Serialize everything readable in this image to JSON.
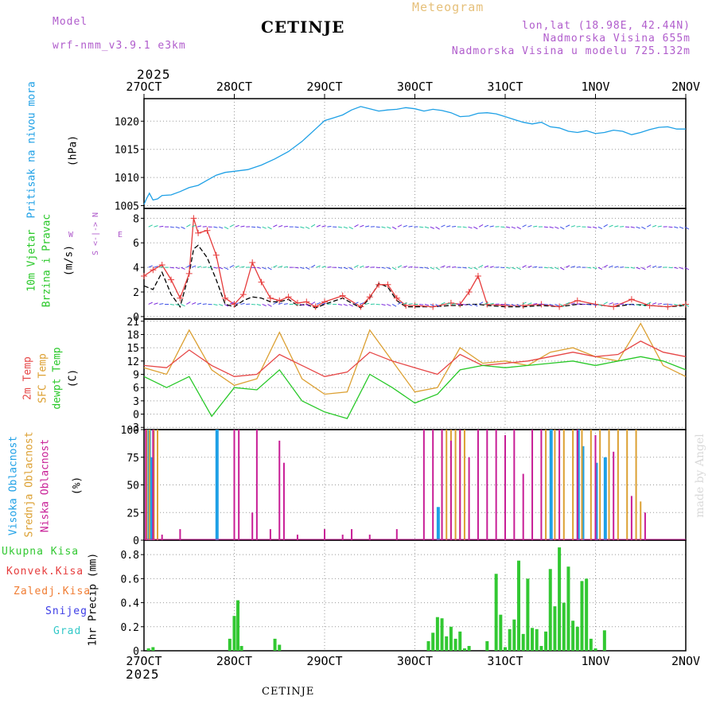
{
  "header": {
    "model_label": "Model",
    "model_name": "wrf-nmm_v3.9.1 e3km",
    "station": "CETINJE",
    "meteogram_label": "Meteogram",
    "lonlat": "lon,lat (18.98E, 42.44N)",
    "altitude": "Nadmorska Visina 655m",
    "model_altitude": "Nadmorska Visina u modelu 725.132m",
    "year_top": "2025",
    "year_bottom": "2025",
    "footer_station": "CETINJE",
    "watermark": "made by Angel"
  },
  "colors": {
    "pressure": "#1ea0e6",
    "temp2m": "#e64646",
    "sfc": "#dca032",
    "dewpt": "#28c828",
    "high_cloud": "#1ea0e6",
    "mid_cloud": "#dca032",
    "low_cloud": "#c81e96",
    "precip": "#32c832",
    "wind_mag": "#e63c3c",
    "gust": "#000000"
  },
  "chart_data": [
    {
      "type": "line",
      "id": "pressure",
      "ylabel_lines": [
        "Pritisak na nivou mora"
      ],
      "unit": "(hPa)",
      "x_ticks": [
        "27OCT",
        "28OCT",
        "29OCT",
        "30OCT",
        "31OCT",
        "1NOV",
        "2NOV"
      ],
      "ylim": [
        1004.5,
        1024
      ],
      "yticks": [
        1005,
        1010,
        1015,
        1020
      ],
      "series": [
        {
          "name": "Pritisak",
          "x": [
            0,
            0.03,
            0.06,
            0.1,
            0.15,
            0.2,
            0.3,
            0.4,
            0.5,
            0.6,
            0.7,
            0.8,
            0.9,
            1.0,
            1.15,
            1.3,
            1.45,
            1.6,
            1.75,
            1.9,
            2.0,
            2.1,
            2.2,
            2.3,
            2.4,
            2.5,
            2.6,
            2.7,
            2.8,
            2.9,
            3.0,
            3.1,
            3.2,
            3.3,
            3.4,
            3.5,
            3.6,
            3.7,
            3.8,
            3.9,
            4.0,
            4.1,
            4.2,
            4.3,
            4.4,
            4.5,
            4.6,
            4.7,
            4.8,
            4.9,
            5.0,
            5.1,
            5.2,
            5.3,
            5.4,
            5.5,
            5.6,
            5.7,
            5.8,
            5.9,
            6.0
          ],
          "values": [
            1005.2,
            1006.3,
            1007.2,
            1006.0,
            1006.2,
            1006.8,
            1006.9,
            1007.5,
            1008.2,
            1008.6,
            1009.5,
            1010.4,
            1010.9,
            1011.1,
            1011.4,
            1012.2,
            1013.3,
            1014.6,
            1016.4,
            1018.6,
            1020.1,
            1020.6,
            1021.1,
            1022.0,
            1022.6,
            1022.2,
            1021.8,
            1022.0,
            1022.1,
            1022.4,
            1022.2,
            1021.8,
            1022.1,
            1021.9,
            1021.5,
            1020.8,
            1020.9,
            1021.4,
            1021.5,
            1021.3,
            1020.8,
            1020.3,
            1019.8,
            1019.5,
            1019.8,
            1019.0,
            1018.8,
            1018.2,
            1018.0,
            1018.3,
            1017.8,
            1018.0,
            1018.4,
            1018.2,
            1017.6,
            1018.0,
            1018.5,
            1018.9,
            1019.0,
            1018.6,
            1018.6
          ]
        }
      ]
    },
    {
      "type": "line",
      "id": "wind",
      "ylabel_lines": [
        "10m Vjetar",
        "Brzina i Pravac"
      ],
      "unit": "(m/s)",
      "direction_legend": [
        "N",
        "W",
        "E",
        "S"
      ],
      "ylim": [
        -0.2,
        8.8
      ],
      "yticks": [
        0,
        2,
        4,
        6,
        8
      ],
      "series": [
        {
          "name": "Brzina",
          "x": [
            0,
            0.1,
            0.2,
            0.3,
            0.4,
            0.5,
            0.55,
            0.6,
            0.7,
            0.8,
            0.9,
            1.0,
            1.1,
            1.2,
            1.3,
            1.4,
            1.5,
            1.6,
            1.7,
            1.8,
            1.9,
            2.0,
            2.2,
            2.4,
            2.5,
            2.6,
            2.7,
            2.8,
            2.9,
            3.0,
            3.2,
            3.4,
            3.5,
            3.6,
            3.7,
            3.8,
            4.0,
            4.2,
            4.4,
            4.6,
            4.8,
            5.0,
            5.2,
            5.4,
            5.6,
            5.8,
            6.0
          ],
          "values": [
            3.3,
            3.8,
            4.2,
            3.0,
            1.5,
            3.5,
            8.0,
            6.8,
            7.0,
            5.0,
            1.5,
            1.0,
            1.8,
            4.4,
            2.8,
            1.5,
            1.3,
            1.6,
            1.1,
            1.2,
            0.8,
            1.2,
            1.7,
            0.8,
            1.6,
            2.6,
            2.6,
            1.5,
            0.9,
            0.9,
            0.8,
            1.1,
            1.0,
            2.0,
            3.3,
            1.0,
            0.9,
            0.9,
            1.0,
            0.8,
            1.3,
            1.0,
            0.8,
            1.4,
            0.9,
            0.8,
            1.0
          ]
        },
        {
          "name": "Udari",
          "x": [
            0,
            0.1,
            0.2,
            0.3,
            0.4,
            0.5,
            0.55,
            0.6,
            0.7,
            0.8,
            0.9,
            1.0,
            1.1,
            1.2,
            1.3,
            1.4,
            1.5,
            1.6,
            1.7,
            1.8,
            1.9,
            2.0,
            2.2,
            2.4,
            2.5,
            2.6,
            2.7,
            2.8,
            2.9,
            3.0,
            3.2,
            3.4,
            3.5,
            3.6,
            3.7,
            3.8,
            4.0,
            4.2,
            4.4,
            4.6,
            4.8,
            5.0,
            5.2,
            5.4,
            5.6,
            5.8,
            6.0
          ],
          "values": [
            2.5,
            2.2,
            3.6,
            1.8,
            0.8,
            3.5,
            5.5,
            5.8,
            4.8,
            3.0,
            1.0,
            0.8,
            1.3,
            1.6,
            1.5,
            1.2,
            1.2,
            1.4,
            0.9,
            1.0,
            0.7,
            1.0,
            1.5,
            0.7,
            1.5,
            2.7,
            2.4,
            1.3,
            0.8,
            0.8,
            0.8,
            0.9,
            0.9,
            1.0,
            1.0,
            0.9,
            0.8,
            0.8,
            0.9,
            0.8,
            1.0,
            1.0,
            0.8,
            1.0,
            0.9,
            0.8,
            0.9
          ]
        }
      ]
    },
    {
      "type": "line",
      "id": "temperature",
      "ylabel_lines": [
        "2m Temp",
        "SFC Temp",
        "dewpt Temp"
      ],
      "unit": "(C)",
      "ylim": [
        -3.5,
        21.5
      ],
      "yticks": [
        -3,
        0,
        3,
        6,
        9,
        12,
        15,
        18,
        21
      ],
      "series": [
        {
          "name": "2m Temp",
          "x": [
            0,
            0.25,
            0.5,
            0.75,
            1.0,
            1.25,
            1.5,
            1.75,
            2.0,
            2.25,
            2.5,
            2.75,
            3.0,
            3.25,
            3.5,
            3.75,
            4.0,
            4.25,
            4.5,
            4.75,
            5.0,
            5.25,
            5.5,
            5.75,
            6.0
          ],
          "values": [
            11.0,
            10.5,
            14.5,
            11.0,
            8.5,
            9.0,
            13.5,
            11.0,
            8.5,
            9.5,
            14.0,
            12.0,
            10.5,
            9.0,
            13.5,
            11.0,
            11.5,
            12.0,
            13.0,
            14.0,
            13.0,
            13.5,
            16.5,
            14.0,
            13.0
          ]
        },
        {
          "name": "SFC Temp",
          "x": [
            0,
            0.25,
            0.5,
            0.75,
            1.0,
            1.25,
            1.5,
            1.75,
            2.0,
            2.25,
            2.5,
            2.75,
            3.0,
            3.25,
            3.5,
            3.75,
            4.0,
            4.25,
            4.5,
            4.75,
            5.0,
            5.25,
            5.5,
            5.75,
            6.0
          ],
          "values": [
            10.5,
            9.0,
            19.0,
            10.0,
            6.5,
            8.0,
            18.5,
            8.0,
            4.5,
            5.0,
            19.0,
            12.0,
            5.0,
            6.0,
            15.0,
            11.5,
            12.0,
            11.0,
            14.0,
            15.0,
            13.0,
            12.0,
            20.5,
            11.0,
            8.5
          ]
        },
        {
          "name": "dewpt Temp",
          "x": [
            0,
            0.25,
            0.5,
            0.75,
            1.0,
            1.25,
            1.5,
            1.75,
            2.0,
            2.25,
            2.5,
            2.75,
            3.0,
            3.25,
            3.5,
            3.75,
            4.0,
            4.25,
            4.5,
            4.75,
            5.0,
            5.25,
            5.5,
            5.75,
            6.0
          ],
          "values": [
            8.5,
            6.0,
            8.5,
            -0.5,
            6.0,
            5.5,
            10.0,
            3.0,
            0.5,
            -1.0,
            9.0,
            6.0,
            2.5,
            4.5,
            10.0,
            11.0,
            10.5,
            11.0,
            11.5,
            12.0,
            11.0,
            12.0,
            13.0,
            12.0,
            10.0
          ]
        }
      ]
    },
    {
      "type": "bar",
      "id": "clouds",
      "ylabel_lines": [
        "Visoka Oblacnost",
        "Srednja Oblacnost",
        "Niska Oblacnost"
      ],
      "unit": "(%)",
      "ylim": [
        0,
        100
      ],
      "yticks": [
        0,
        25,
        50,
        75,
        100
      ],
      "series": [
        {
          "name": "Visoka Oblacnost",
          "x": [
            0.05,
            0.08,
            0.8,
            3.25,
            4.5,
            4.8,
            4.85,
            5.0,
            5.1
          ],
          "values": [
            100,
            75,
            100,
            30,
            100,
            100,
            85,
            70,
            75
          ]
        },
        {
          "name": "Srednja Oblacnost",
          "x": [
            0.03,
            0.06,
            0.11,
            0.15,
            3.3,
            3.35,
            3.4,
            3.45,
            3.5,
            3.55,
            4.45,
            4.55,
            4.65,
            4.75,
            4.85,
            4.95,
            5.05,
            5.15,
            5.25,
            5.35,
            5.45,
            5.5
          ],
          "values": [
            100,
            100,
            100,
            100,
            100,
            100,
            100,
            100,
            100,
            100,
            100,
            100,
            100,
            100,
            100,
            100,
            100,
            100,
            100,
            100,
            100,
            35
          ]
        },
        {
          "name": "Niska Oblacnost",
          "x": [
            0.02,
            0.1,
            0.2,
            0.4,
            1.0,
            1.05,
            1.2,
            1.25,
            1.4,
            1.5,
            1.55,
            1.7,
            2.0,
            2.2,
            2.3,
            2.5,
            2.8,
            3.1,
            3.2,
            3.3,
            3.4,
            3.5,
            3.6,
            3.7,
            3.8,
            3.9,
            4.0,
            4.1,
            4.2,
            4.3,
            4.4,
            4.6,
            4.8,
            5.0,
            5.2,
            5.4,
            5.55
          ],
          "values": [
            100,
            100,
            5,
            10,
            100,
            100,
            25,
            100,
            10,
            90,
            70,
            5,
            10,
            5,
            10,
            5,
            10,
            100,
            100,
            100,
            90,
            100,
            75,
            100,
            100,
            100,
            95,
            100,
            60,
            100,
            100,
            100,
            100,
            95,
            80,
            40,
            25
          ]
        }
      ]
    },
    {
      "type": "bar",
      "id": "precip",
      "ylabel_lines": [
        "1hr Precip"
      ],
      "unit": "(mm)",
      "legend": [
        "Ukupna Kisa",
        "Konvek.Kisa",
        "Zaledj.Kisa",
        "Snijeg",
        "Grad"
      ],
      "legend_colors": [
        "#32c832",
        "#e63c3c",
        "#f07c32",
        "#3c3ce6",
        "#32c8c8"
      ],
      "ylim": [
        0,
        0.92
      ],
      "yticks": [
        0,
        0.2,
        0.4,
        0.6,
        0.8
      ],
      "categories_x": [
        0.05,
        0.1,
        0.95,
        1.0,
        1.04,
        1.08,
        1.45,
        1.5,
        3.15,
        3.2,
        3.25,
        3.3,
        3.35,
        3.4,
        3.45,
        3.5,
        3.55,
        3.6,
        3.8,
        3.9,
        3.95,
        4.0,
        4.05,
        4.1,
        4.15,
        4.2,
        4.25,
        4.3,
        4.35,
        4.4,
        4.45,
        4.5,
        4.55,
        4.6,
        4.65,
        4.7,
        4.75,
        4.8,
        4.85,
        4.9,
        4.95,
        5.0,
        5.1
      ],
      "values": [
        0.02,
        0.03,
        0.1,
        0.29,
        0.42,
        0.04,
        0.1,
        0.05,
        0.08,
        0.15,
        0.28,
        0.27,
        0.12,
        0.2,
        0.1,
        0.16,
        0.02,
        0.04,
        0.08,
        0.64,
        0.3,
        0.03,
        0.18,
        0.26,
        0.75,
        0.14,
        0.6,
        0.19,
        0.18,
        0.04,
        0.16,
        0.68,
        0.37,
        0.86,
        0.4,
        0.7,
        0.25,
        0.2,
        0.58,
        0.6,
        0.1,
        0.02,
        0.17
      ]
    }
  ]
}
